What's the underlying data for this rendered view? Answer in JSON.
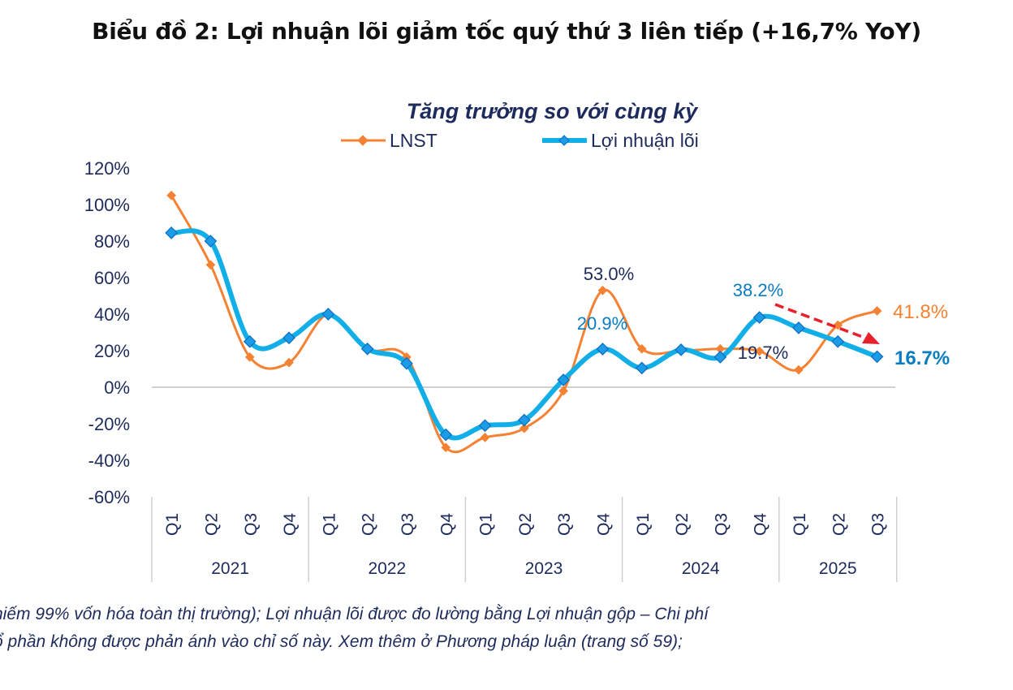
{
  "title": "Biểu đồ 2: Lợi nhuận lõi giảm tốc quý thứ 3 liên tiếp (+16,7% YoY)",
  "footnote": [
    "hiếm 99% vốn hóa toàn thị trường); Lợi nhuận lõi được đo lường bằng Lợi nhuận gộp – Chi phí",
    "ổ phần không được phản ánh vào chỉ số này. Xem thêm ở Phương pháp luận (trang số 59);"
  ],
  "chart_data": {
    "type": "line",
    "title": "Tăng trưởng so với cùng kỳ",
    "xlabel": "",
    "ylabel": "",
    "ylim": [
      -60,
      120
    ],
    "yticks": [
      -60,
      -40,
      -20,
      0,
      20,
      40,
      60,
      80,
      100,
      120
    ],
    "ytick_labels": [
      "-60%",
      "-40%",
      "-20%",
      "0%",
      "20%",
      "40%",
      "60%",
      "80%",
      "100%",
      "120%"
    ],
    "grid": false,
    "legend": "top",
    "years": [
      {
        "label": "2021",
        "quarters": [
          "Q1",
          "Q2",
          "Q3",
          "Q4"
        ]
      },
      {
        "label": "2022",
        "quarters": [
          "Q1",
          "Q2",
          "Q3",
          "Q4"
        ]
      },
      {
        "label": "2023",
        "quarters": [
          "Q1",
          "Q2",
          "Q3",
          "Q4"
        ]
      },
      {
        "label": "2024",
        "quarters": [
          "Q1",
          "Q2",
          "Q3",
          "Q4"
        ]
      },
      {
        "label": "2025",
        "quarters": [
          "Q1",
          "Q2",
          "Q3"
        ]
      }
    ],
    "series": [
      {
        "name": "LNST",
        "color": "#f58233",
        "values": [
          105,
          67,
          16.5,
          13.5,
          40,
          21,
          16.5,
          -33,
          -27.5,
          -22.5,
          -2,
          53.0,
          21,
          20,
          21,
          19.7,
          9.5,
          34,
          41.8
        ]
      },
      {
        "name": "Lợi nhuận lõi",
        "color": "#12aee8",
        "values": [
          84.5,
          80,
          25,
          27,
          40,
          21,
          13,
          -26,
          -21,
          -18,
          4,
          20.9,
          10.5,
          20.5,
          16.5,
          38.2,
          32.5,
          25,
          16.7
        ]
      }
    ],
    "annotations": [
      {
        "text": "53.0%",
        "series": 0,
        "index": 11,
        "color": "#1d2a5c"
      },
      {
        "text": "20.9%",
        "series": 1,
        "index": 11,
        "color": "#0a7cc0"
      },
      {
        "text": "19.7%",
        "series": 0,
        "index": 15,
        "color": "#1d2a5c"
      },
      {
        "text": "38.2%",
        "series": 1,
        "index": 15,
        "color": "#0a7cc0"
      },
      {
        "text": "41.8%",
        "series": 0,
        "index": 18,
        "color": "#f58233"
      },
      {
        "text": "16.7%",
        "series": 1,
        "index": 18,
        "color": "#0a7cc0",
        "bold": true
      }
    ],
    "trend_arrow": {
      "from_index": 15,
      "to_index": 18,
      "color": "#e8202a",
      "style": "dashed"
    }
  }
}
